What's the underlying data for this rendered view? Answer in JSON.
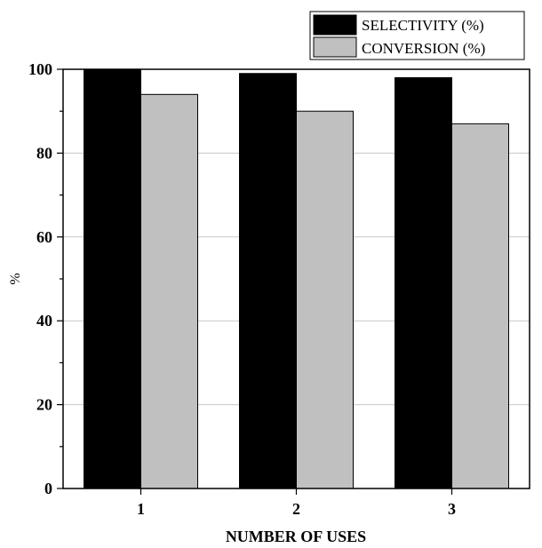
{
  "chart_data": {
    "type": "bar",
    "xlabel": "NUMBER OF USES",
    "ylabel": "%",
    "categories": [
      "1",
      "2",
      "3"
    ],
    "ylim": [
      0,
      100
    ],
    "yticks": [
      0,
      20,
      40,
      60,
      80,
      100
    ],
    "grid": "horizontal",
    "legend_position": "top-right",
    "series": [
      {
        "name": "SELECTIVITY (%)",
        "values": [
          100,
          99,
          98
        ],
        "color": "#000000"
      },
      {
        "name": "CONVERSION (%)",
        "values": [
          94,
          90,
          87
        ],
        "color": "#c0c0c0"
      }
    ]
  }
}
